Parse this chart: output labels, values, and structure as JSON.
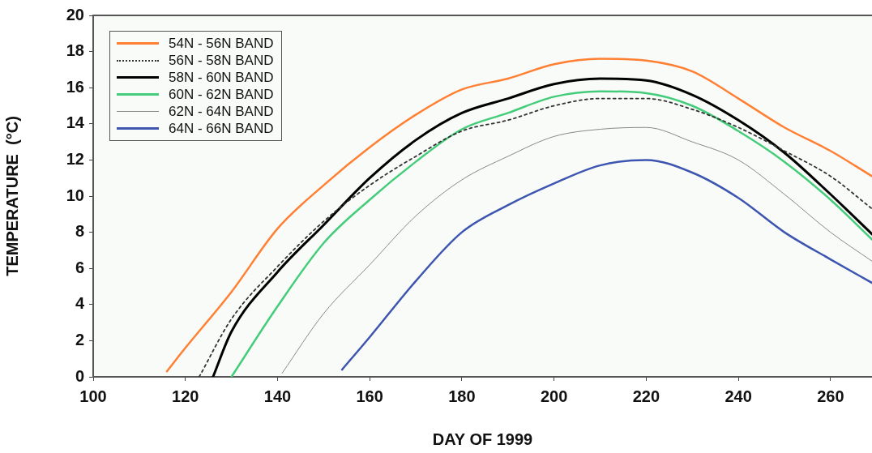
{
  "chart_data": {
    "type": "line",
    "xlabel": "DAY OF 1999",
    "ylabel": "TEMPERATURE  (°C)",
    "xlim": [
      100,
      269
    ],
    "xticks": [
      100,
      120,
      140,
      160,
      180,
      200,
      220,
      240,
      260
    ],
    "ylim": [
      0,
      20
    ],
    "yticks": [
      0,
      2,
      4,
      6,
      8,
      10,
      12,
      14,
      16,
      18,
      20
    ],
    "grid": false,
    "legend": "top left",
    "marker": "none",
    "line_style": "solid",
    "series": [
      {
        "name": "54N - 56N BAND",
        "color": "#ff7f33",
        "x": [
          116,
          120,
          130,
          140,
          150,
          160,
          170,
          180,
          190,
          200,
          210,
          220,
          230,
          240,
          250,
          260,
          269
        ],
        "values": [
          0.3,
          1.6,
          4.7,
          8.2,
          10.6,
          12.7,
          14.5,
          15.9,
          16.5,
          17.3,
          17.6,
          17.5,
          16.9,
          15.4,
          13.8,
          12.5,
          11.1
        ]
      },
      {
        "name": "56N - 58N BAND",
        "color": "#333333",
        "line_style": "dotted",
        "x": [
          123,
          130,
          140,
          150,
          160,
          170,
          180,
          190,
          200,
          210,
          220,
          230,
          240,
          250,
          260,
          269
        ],
        "values": [
          0,
          3.2,
          6.1,
          8.6,
          10.6,
          12.2,
          13.6,
          14.2,
          15.0,
          15.4,
          15.4,
          14.8,
          13.8,
          12.5,
          11.1,
          9.3
        ]
      },
      {
        "name": "58N - 60N BAND",
        "color": "#000000",
        "x": [
          126,
          130,
          140,
          150,
          160,
          170,
          180,
          190,
          200,
          210,
          220,
          230,
          240,
          250,
          260,
          269
        ],
        "values": [
          0,
          2.5,
          5.8,
          8.4,
          11.0,
          13.1,
          14.6,
          15.4,
          16.2,
          16.5,
          16.4,
          15.6,
          14.2,
          12.4,
          10.1,
          7.9
        ]
      },
      {
        "name": "60N - 62N BAND",
        "color": "#44cc7a",
        "x": [
          130,
          140,
          150,
          160,
          170,
          180,
          190,
          200,
          210,
          220,
          230,
          240,
          250,
          260,
          269
        ],
        "values": [
          0,
          3.9,
          7.4,
          9.8,
          11.9,
          13.7,
          14.6,
          15.5,
          15.8,
          15.7,
          15.0,
          13.6,
          11.9,
          9.8,
          7.6
        ]
      },
      {
        "name": "62N - 64N BAND",
        "color": "#888888",
        "x": [
          141,
          150,
          160,
          170,
          180,
          190,
          200,
          210,
          220,
          230,
          240,
          250,
          260,
          269
        ],
        "values": [
          0.2,
          3.5,
          6.2,
          8.9,
          10.9,
          12.2,
          13.3,
          13.7,
          13.8,
          13.0,
          12.0,
          10.1,
          8.0,
          6.4
        ]
      },
      {
        "name": "64N - 66N BAND",
        "color": "#3d55b0",
        "x": [
          154,
          160,
          170,
          180,
          190,
          200,
          210,
          220,
          230,
          240,
          250,
          260,
          269
        ],
        "values": [
          0.4,
          2.2,
          5.3,
          8.0,
          9.5,
          10.7,
          11.7,
          12.0,
          11.3,
          9.9,
          8.0,
          6.5,
          5.2
        ]
      }
    ]
  }
}
